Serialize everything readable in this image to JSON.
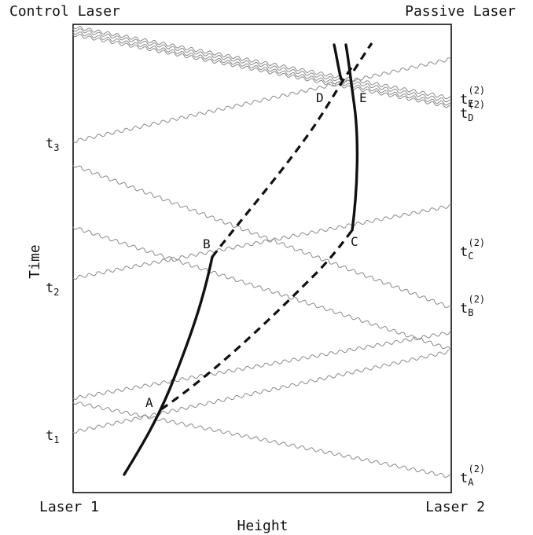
{
  "labels": {
    "control_laser": "Control Laser",
    "passive_laser": "Passive Laser",
    "laser_1": "Laser 1",
    "laser_2": "Laser 2",
    "x_axis": "Height",
    "y_axis": "Time"
  },
  "left_ticks": {
    "t3": {
      "base": "t",
      "sub": "3"
    },
    "t2": {
      "base": "t",
      "sub": "2"
    },
    "t1": {
      "base": "t",
      "sub": "1"
    }
  },
  "right_ticks": {
    "tE": {
      "base": "t",
      "sub": "E",
      "sup": "(2)"
    },
    "tD": {
      "base": "t",
      "sub": "D",
      "sup": "(2)"
    },
    "tC": {
      "base": "t",
      "sub": "C",
      "sup": "(2)"
    },
    "tB": {
      "base": "t",
      "sub": "B",
      "sup": "(2)"
    },
    "tA": {
      "base": "t",
      "sub": "A",
      "sup": "(2)"
    }
  },
  "events": {
    "A": "A",
    "B": "B",
    "C": "C",
    "D": "D",
    "E": "E"
  },
  "colors": {
    "ink": "#111111",
    "signal_wave": "#8a8a8a"
  }
}
